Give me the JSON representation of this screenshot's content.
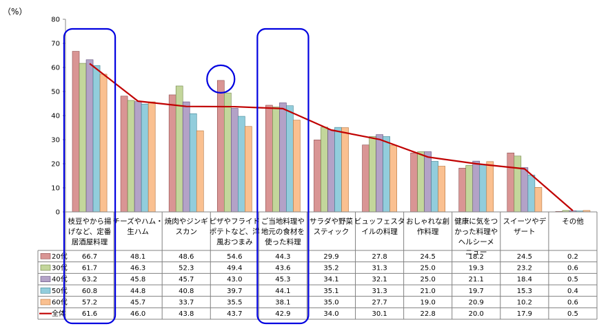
{
  "chart_data": {
    "type": "bar",
    "unit_label": "（%）",
    "ylim": [
      0,
      80
    ],
    "yticks": [
      0,
      10,
      20,
      30,
      40,
      50,
      60,
      70,
      80
    ],
    "grid": false,
    "legend_position": "table-left",
    "categories": [
      [
        "枝豆やから揚",
        "げなど、定番",
        "居酒屋料理"
      ],
      [
        "チーズやハム・",
        "生ハム"
      ],
      [
        "焼肉やジンギ",
        "スカン"
      ],
      [
        "ピザやフライド",
        "ポテトなど、洋",
        "風おつまみ"
      ],
      [
        "ご当地料理や",
        "地元の食材を",
        "使った料理"
      ],
      [
        "サラダや野菜",
        "スティック"
      ],
      [
        "ビュッフェスタ",
        "イルの料理"
      ],
      [
        "おしゃれな創",
        "作料理"
      ],
      [
        "健康に気をつ",
        "かった料理や",
        "ヘルシーメ",
        "ニュー"
      ],
      [
        "スイーツやデ",
        "ザート"
      ],
      [
        "その他"
      ]
    ],
    "series": [
      {
        "name": "20代",
        "color": "#d99594",
        "stroke": "#8b4a4a",
        "values": [
          66.7,
          48.1,
          48.6,
          54.6,
          44.3,
          29.9,
          27.8,
          24.5,
          18.2,
          24.5,
          0.2
        ]
      },
      {
        "name": "30代",
        "color": "#c3d69b",
        "stroke": "#6d8044",
        "values": [
          61.7,
          46.3,
          52.3,
          49.4,
          43.6,
          35.2,
          31.3,
          25.0,
          19.3,
          23.2,
          0.6
        ]
      },
      {
        "name": "40代",
        "color": "#b3a2c7",
        "stroke": "#5f4b7a",
        "values": [
          63.2,
          45.8,
          45.7,
          43.0,
          45.3,
          34.1,
          32.1,
          25.0,
          21.1,
          18.4,
          0.5
        ]
      },
      {
        "name": "50代",
        "color": "#92cddc",
        "stroke": "#3f8393",
        "values": [
          60.8,
          44.8,
          40.8,
          39.7,
          44.1,
          35.1,
          31.3,
          21.0,
          19.7,
          15.3,
          0.4
        ]
      },
      {
        "name": "60代",
        "color": "#fac090",
        "stroke": "#b5723a",
        "values": [
          57.2,
          45.7,
          33.7,
          35.5,
          38.1,
          35.0,
          27.7,
          19.0,
          20.9,
          10.2,
          0.6
        ]
      }
    ],
    "total_series": {
      "name": "全体",
      "color": "#c00000",
      "values": [
        61.6,
        46.0,
        43.8,
        43.7,
        42.9,
        34.0,
        30.1,
        22.8,
        20.0,
        17.9,
        0.5
      ]
    },
    "value_labels": [
      [
        "66.7",
        "48.1",
        "48.6",
        "54.6",
        "44.3",
        "29.9",
        "27.8",
        "24.5",
        "18.2",
        "24.5",
        "0.2"
      ],
      [
        "61.7",
        "46.3",
        "52.3",
        "49.4",
        "43.6",
        "35.2",
        "31.3",
        "25.0",
        "19.3",
        "23.2",
        "0.6"
      ],
      [
        "63.2",
        "45.8",
        "45.7",
        "43.0",
        "45.3",
        "34.1",
        "32.1",
        "25.0",
        "21.1",
        "18.4",
        "0.5"
      ],
      [
        "60.8",
        "44.8",
        "40.8",
        "39.7",
        "44.1",
        "35.1",
        "31.3",
        "21.0",
        "19.7",
        "15.3",
        "0.4"
      ],
      [
        "57.2",
        "45.7",
        "33.7",
        "35.5",
        "38.1",
        "35.0",
        "27.7",
        "19.0",
        "20.9",
        "10.2",
        "0.6"
      ],
      [
        "61.6",
        "46.0",
        "43.8",
        "43.7",
        "42.9",
        "34.0",
        "30.1",
        "22.8",
        "20.0",
        "17.9",
        "0.5"
      ]
    ],
    "highlights": {
      "rectangles": {
        "category_indices": [
          0,
          4
        ],
        "color": "#0000e0"
      },
      "circle": {
        "category_index": 3,
        "series_index": 0,
        "color": "#0000e0"
      }
    }
  }
}
